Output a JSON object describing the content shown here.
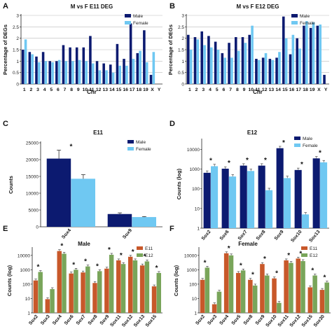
{
  "colors": {
    "male": "#0c1a70",
    "female": "#6fc8f2",
    "e11": "#c8582a",
    "e12": "#79a55a",
    "grid": "#bbbbbb",
    "axis": "#222222"
  },
  "chart_data": [
    {
      "panel": "A",
      "type": "bar",
      "title": "M vs F E11 DEG",
      "xlabel": "Chr",
      "ylabel": "Percentage of DEGs",
      "categories": [
        "1",
        "2",
        "3",
        "4",
        "5",
        "6",
        "7",
        "8",
        "9",
        "10",
        "11",
        "12",
        "13",
        "14",
        "15",
        "16",
        "17",
        "18",
        "19",
        "X",
        "Y"
      ],
      "yticks": [
        "0",
        "0.5",
        "1",
        "1.5",
        "2",
        "2.5",
        "3"
      ],
      "ylim": [
        0,
        3
      ],
      "grid": true,
      "series": [
        {
          "name": "",
          "color": "#0c1a70",
          "values": [
            1.5,
            1.4,
            1.2,
            1.4,
            1.0,
            1.0,
            1.7,
            1.6,
            1.6,
            1.6,
            2.1,
            1.0,
            0.9,
            0.85,
            1.75,
            1.1,
            2.65,
            1.35,
            2.35,
            0.4,
            0.0
          ]
        },
        {
          "name": "",
          "color": "#6fc8f2",
          "values": [
            1.95,
            1.3,
            0.95,
            1.0,
            0.95,
            1.05,
            1.0,
            1.0,
            1.05,
            1.0,
            0.9,
            0.6,
            0.6,
            0.5,
            0.8,
            0.8,
            1.1,
            1.45,
            0.95,
            1.4,
            0.0
          ]
        }
      ],
      "legend": [
        "Male",
        "Female"
      ],
      "legend_position": "top-right"
    },
    {
      "panel": "B",
      "type": "bar",
      "title": "M vs F E12 DEG",
      "xlabel": "Chr",
      "ylabel": "Percentage of DEGs",
      "categories": [
        "1",
        "2",
        "3",
        "4",
        "5",
        "6",
        "7",
        "8",
        "9",
        "10",
        "11",
        "12",
        "13",
        "14",
        "15",
        "16",
        "17",
        "18",
        "19",
        "X",
        "Y"
      ],
      "yticks": [
        "0",
        "0.5",
        "1",
        "1.5",
        "2",
        "2.5",
        "3"
      ],
      "ylim": [
        0,
        3
      ],
      "grid": true,
      "series": [
        {
          "name": "",
          "color": "#0c1a70",
          "values": [
            2.15,
            2.05,
            2.3,
            2.1,
            1.85,
            1.35,
            1.8,
            2.05,
            2.05,
            2.15,
            1.1,
            1.15,
            1.1,
            1.15,
            2.95,
            1.3,
            2.0,
            2.55,
            2.45,
            2.55,
            0.4
          ]
        },
        {
          "name": "",
          "color": "#6fc8f2",
          "values": [
            1.5,
            1.95,
            1.7,
            1.6,
            1.5,
            1.15,
            1.15,
            1.45,
            1.8,
            2.55,
            1.05,
            1.35,
            1.05,
            1.4,
            2.0,
            2.15,
            1.55,
            2.75,
            2.7,
            2.6,
            0.0
          ]
        }
      ],
      "legend": [
        "Male",
        "Female"
      ],
      "legend_position": "top-right"
    },
    {
      "panel": "C",
      "type": "bar",
      "title": "E11",
      "xlabel": "",
      "ylabel": "Counts",
      "categories": [
        "Sox4",
        "Sox9"
      ],
      "yticks": [
        "0",
        "5000",
        "10000",
        "15000",
        "20000",
        "25000"
      ],
      "ylim": [
        0,
        25000
      ],
      "grid": false,
      "series": [
        {
          "name": "",
          "color": "#0c1a70",
          "values": [
            20300,
            3800
          ],
          "errors": [
            2500,
            350
          ]
        },
        {
          "name": "",
          "color": "#6fc8f2",
          "values": [
            14300,
            2900
          ],
          "errors": [
            1200,
            150
          ]
        }
      ],
      "annotations": [
        {
          "category": "Sox4",
          "text": "*"
        }
      ],
      "legend": [
        "Male",
        "Female"
      ],
      "legend_position": "top-right"
    },
    {
      "panel": "D",
      "type": "bar",
      "title": "E12",
      "xlabel": "",
      "ylabel": "Counts (log)",
      "yscale": "log",
      "categories": [
        "Sox2",
        "Sox6",
        "Sox7",
        "Sox8",
        "Sox9",
        "Sox10",
        "Sox13"
      ],
      "yticks": [
        "1",
        "10",
        "100",
        "1000",
        "10000"
      ],
      "ylim": [
        1,
        30000
      ],
      "grid": false,
      "series": [
        {
          "name": "",
          "color": "#0c1a70",
          "values": [
            650,
            1050,
            1500,
            1500,
            11500,
            900,
            3500
          ]
        },
        {
          "name": "",
          "color": "#6fc8f2",
          "values": [
            1400,
            420,
            800,
            85,
            350,
            5,
            2200
          ]
        }
      ],
      "annotations": [
        {
          "category": "Sox2",
          "text": "*"
        },
        {
          "category": "Sox6",
          "text": "*"
        },
        {
          "category": "Sox7",
          "text": "*"
        },
        {
          "category": "Sox8",
          "text": "*"
        },
        {
          "category": "Sox9",
          "text": "*"
        },
        {
          "category": "Sox10",
          "text": "*"
        },
        {
          "category": "Sox13",
          "text": "*"
        }
      ],
      "legend": [
        "Male",
        "Female"
      ],
      "legend_position": "top-right"
    },
    {
      "panel": "E",
      "type": "bar",
      "title": "Male",
      "xlabel": "",
      "ylabel": "Counts (log)",
      "yscale": "log",
      "categories": [
        "Sox2",
        "Sox3",
        "Sox4",
        "Sox6",
        "Sox7",
        "Sox8",
        "Sox9",
        "Sox11",
        "Sox12",
        "Sox13",
        "Sox15"
      ],
      "yticks": [
        "1",
        "10",
        "100",
        "1000",
        "10000"
      ],
      "ylim": [
        1,
        30000
      ],
      "grid": false,
      "series": [
        {
          "name": "",
          "color": "#c8582a",
          "values": [
            180,
            9,
            20000,
            550,
            650,
            120,
            1200,
            4500,
            8000,
            2000,
            70
          ]
        },
        {
          "name": "",
          "color": "#79a55a",
          "values": [
            700,
            45,
            13000,
            1000,
            1700,
            800,
            11000,
            2500,
            4500,
            3800,
            600
          ]
        }
      ],
      "annotations": [
        {
          "category": "Sox2",
          "text": "*"
        },
        {
          "category": "Sox4",
          "text": "*"
        },
        {
          "category": "Sox6",
          "text": "*"
        },
        {
          "category": "Sox7",
          "text": "*"
        },
        {
          "category": "Sox8",
          "text": "*"
        },
        {
          "category": "Sox9",
          "text": "*"
        },
        {
          "category": "Sox11",
          "text": "*"
        },
        {
          "category": "Sox12",
          "text": "*"
        },
        {
          "category": "Sox13",
          "text": "*"
        },
        {
          "category": "Sox15",
          "text": "*"
        }
      ],
      "legend": [
        "E11",
        "E12"
      ],
      "legend_position": "top-right"
    },
    {
      "panel": "F",
      "type": "bar",
      "title": "Female",
      "xlabel": "",
      "ylabel": "Counts (log)",
      "yscale": "log",
      "categories": [
        "Sox2",
        "Sox3",
        "Sox4",
        "Sox5",
        "Sox8",
        "Sox9",
        "Sox10",
        "Sox11",
        "Sox12",
        "Sox15",
        "Sox30"
      ],
      "yticks": [
        "1",
        "10",
        "100",
        "1000",
        "10000"
      ],
      "ylim": [
        1,
        30000
      ],
      "grid": false,
      "series": [
        {
          "name": "",
          "color": "#c8582a",
          "values": [
            200,
            4,
            14000,
            600,
            200,
            2500,
            250,
            4500,
            6000,
            60,
            40
          ]
        },
        {
          "name": "",
          "color": "#79a55a",
          "values": [
            1400,
            30,
            10000,
            900,
            80,
            400,
            5,
            3000,
            4000,
            400,
            130
          ]
        }
      ],
      "annotations": [
        {
          "category": "Sox2",
          "text": "*"
        },
        {
          "category": "Sox4",
          "text": "*"
        },
        {
          "category": "Sox5",
          "text": "*"
        },
        {
          "category": "Sox8",
          "text": "*"
        },
        {
          "category": "Sox9",
          "text": "*"
        },
        {
          "category": "Sox10",
          "text": "*"
        },
        {
          "category": "Sox11",
          "text": "*"
        },
        {
          "category": "Sox12",
          "text": "*"
        },
        {
          "category": "Sox15",
          "text": "*"
        },
        {
          "category": "Sox30",
          "text": "*"
        }
      ],
      "legend": [
        "E11",
        "E12"
      ],
      "legend_position": "top-right"
    }
  ]
}
